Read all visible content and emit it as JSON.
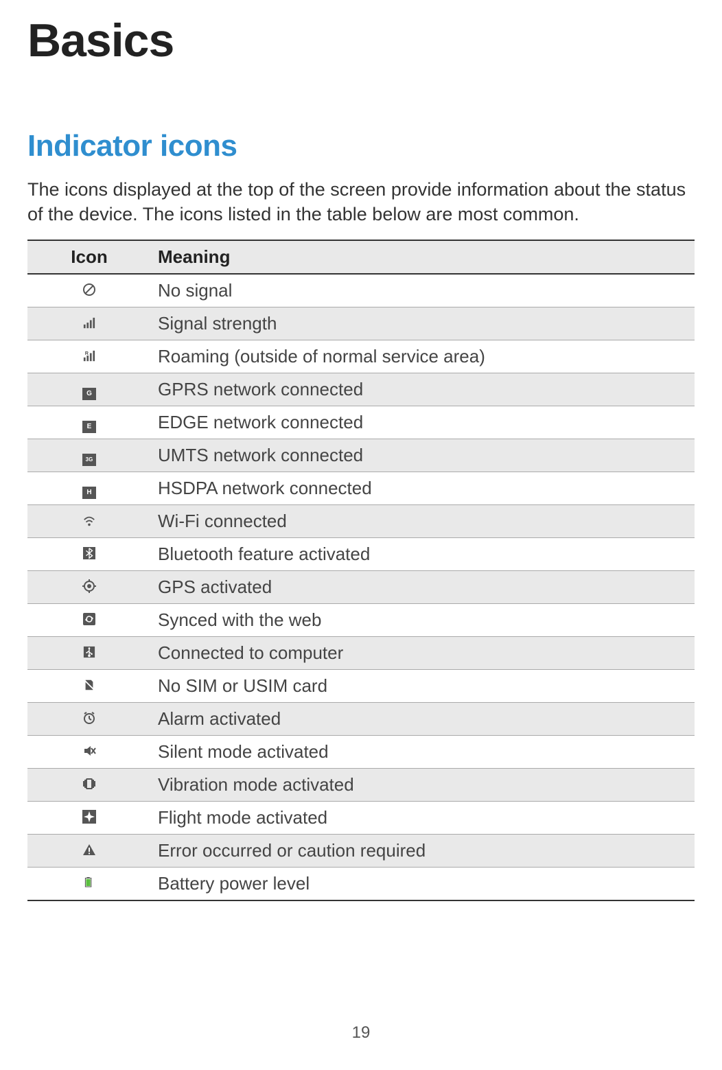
{
  "page_title": "Basics",
  "section_title": "Indicator icons",
  "intro": "The icons displayed at the top of the screen provide information about the status of the device. The icons listed in the table below are most common.",
  "table": {
    "columns": [
      "Icon",
      "Meaning"
    ],
    "rows": [
      {
        "icon": "no-signal",
        "meaning": "No signal"
      },
      {
        "icon": "signal-strength",
        "meaning": "Signal strength"
      },
      {
        "icon": "roaming",
        "meaning": "Roaming (outside of normal service area)"
      },
      {
        "icon": "gprs",
        "meaning": "GPRS network connected"
      },
      {
        "icon": "edge",
        "meaning": "EDGE network connected"
      },
      {
        "icon": "umts",
        "meaning": "UMTS network connected"
      },
      {
        "icon": "hsdpa",
        "meaning": "HSDPA network connected"
      },
      {
        "icon": "wifi",
        "meaning": "Wi-Fi connected"
      },
      {
        "icon": "bluetooth",
        "meaning": "Bluetooth feature activated"
      },
      {
        "icon": "gps",
        "meaning": "GPS activated"
      },
      {
        "icon": "sync",
        "meaning": "Synced with the web"
      },
      {
        "icon": "usb",
        "meaning": "Connected to computer"
      },
      {
        "icon": "no-sim",
        "meaning": "No SIM or USIM card"
      },
      {
        "icon": "alarm",
        "meaning": "Alarm activated"
      },
      {
        "icon": "silent",
        "meaning": "Silent mode activated"
      },
      {
        "icon": "vibration",
        "meaning": "Vibration mode activated"
      },
      {
        "icon": "flight",
        "meaning": "Flight mode activated"
      },
      {
        "icon": "error",
        "meaning": "Error occurred or caution required"
      },
      {
        "icon": "battery",
        "meaning": "Battery power level"
      }
    ]
  },
  "page_number": "19",
  "colors": {
    "heading": "#222222",
    "section": "#2f8ecf",
    "text": "#333333",
    "row_alt_bg": "#e9e9e9",
    "border": "#aaaaaa",
    "border_strong": "#333333",
    "battery_green": "#5bbf3f"
  },
  "fonts": {
    "page_title_pt": 51,
    "section_title_pt": 33,
    "body_pt": 20,
    "table_pt": 19
  }
}
